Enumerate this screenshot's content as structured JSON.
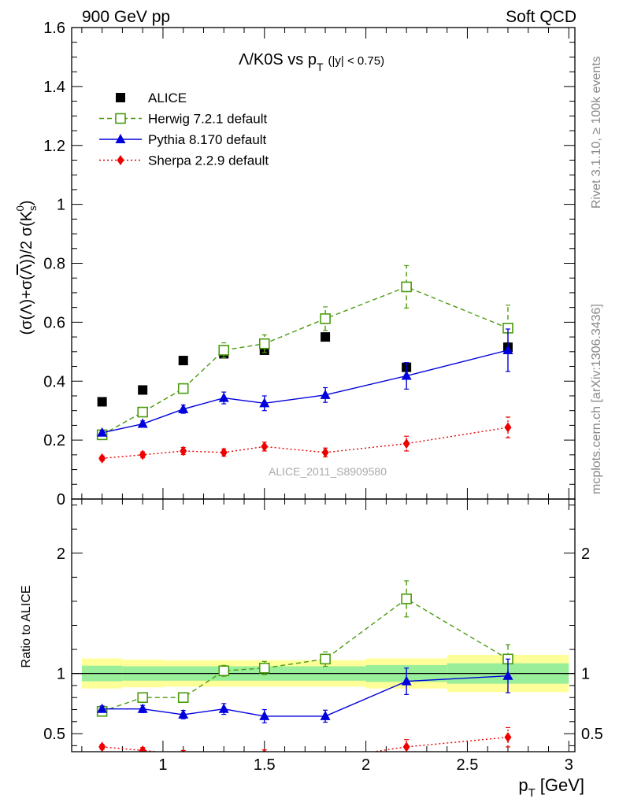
{
  "header": {
    "left": "900 GeV pp",
    "right": "Soft QCD"
  },
  "side_text": {
    "rivet": "Rivet 3.1.10, ≥ 100k events",
    "ref": "mcplots.cern.ch [arXiv:1306.3436]"
  },
  "chart_data": [
    {
      "type": "scatter",
      "title": "Λ/K0S vs p",
      "title_sub": "T",
      "title_cut": "(|y| < 0.75)",
      "watermark": "ALICE_2011_S8909580",
      "ylabel": "(σ(Λ)+σ(Λ))/2 σ(K⁰s)",
      "xlim": [
        0.55,
        3.03
      ],
      "ylim": [
        0,
        1.6
      ],
      "yticks": [
        0,
        0.2,
        0.4,
        0.6,
        0.8,
        1,
        1.2,
        1.4,
        1.6
      ],
      "ytick_labels": [
        "0",
        "0.2",
        "0.4",
        "0.6",
        "0.8",
        "1",
        "1.2",
        "1.4",
        "1.6"
      ],
      "legend_position": "top-left",
      "series": [
        {
          "name": "ALICE",
          "color": "#000000",
          "marker": "square-filled",
          "line": "none",
          "x": [
            0.7,
            0.9,
            1.1,
            1.3,
            1.5,
            1.8,
            2.2,
            2.7
          ],
          "y": [
            0.33,
            0.37,
            0.47,
            0.493,
            0.505,
            0.55,
            0.447,
            0.515
          ],
          "err": [
            0.008,
            0.008,
            0.008,
            0.01,
            0.01,
            0.01,
            0.012,
            0.015
          ]
        },
        {
          "name": "Herwig 7.2.1 default",
          "color": "#4a9b0f",
          "marker": "square-open",
          "line": "dashed",
          "x": [
            0.7,
            0.9,
            1.1,
            1.3,
            1.5,
            1.8,
            2.2,
            2.7
          ],
          "y": [
            0.218,
            0.295,
            0.375,
            0.505,
            0.527,
            0.612,
            0.72,
            0.58
          ],
          "err": [
            0.01,
            0.01,
            0.012,
            0.025,
            0.03,
            0.04,
            0.072,
            0.078
          ]
        },
        {
          "name": "Pythia 8.170 default",
          "color": "#0000dd",
          "marker": "triangle",
          "line": "solid",
          "x": [
            0.7,
            0.9,
            1.1,
            1.3,
            1.5,
            1.8,
            2.2,
            2.7
          ],
          "y": [
            0.225,
            0.255,
            0.305,
            0.343,
            0.325,
            0.353,
            0.418,
            0.505
          ],
          "err": [
            0.008,
            0.01,
            0.014,
            0.02,
            0.025,
            0.025,
            0.045,
            0.072
          ]
        },
        {
          "name": "Sherpa 2.2.9 default",
          "color": "#ee0000",
          "marker": "diamond",
          "line": "dotted",
          "x": [
            0.7,
            0.9,
            1.1,
            1.3,
            1.5,
            1.8,
            2.2,
            2.7
          ],
          "y": [
            0.138,
            0.15,
            0.163,
            0.158,
            0.178,
            0.158,
            0.188,
            0.243
          ],
          "err": [
            0.008,
            0.01,
            0.012,
            0.012,
            0.015,
            0.015,
            0.025,
            0.035
          ]
        }
      ]
    },
    {
      "type": "scatter",
      "ylabel": "Ratio to ALICE",
      "xlabel": "p",
      "xlabel_sub": "T",
      "xlabel_unit": "[GeV]",
      "xlim": [
        0.55,
        3.03
      ],
      "ylim": [
        0.35,
        2.45
      ],
      "xticks": [
        1,
        1.5,
        2,
        2.5,
        3
      ],
      "xtick_labels": [
        "1",
        "1.5",
        "2",
        "2.5",
        "3"
      ],
      "yticks": [
        0.5,
        1,
        2
      ],
      "ytick_labels": [
        "0.5",
        "1",
        "2"
      ],
      "reference_line": 1,
      "bands": {
        "edges": [
          0.6,
          0.8,
          1.0,
          1.2,
          1.4,
          1.6,
          2.0,
          2.4,
          3.0
        ],
        "inner": [
          0.065,
          0.06,
          0.06,
          0.06,
          0.06,
          0.06,
          0.07,
          0.085
        ],
        "outer": [
          0.125,
          0.115,
          0.11,
          0.11,
          0.11,
          0.11,
          0.125,
          0.155
        ],
        "inner_color": "#99ee99",
        "outer_color": "#ffff99"
      },
      "series": [
        {
          "name": "Herwig 7.2.1 default",
          "color": "#4a9b0f",
          "marker": "square-open",
          "line": "dashed",
          "x": [
            0.7,
            0.9,
            1.1,
            1.3,
            1.5,
            1.8,
            2.2,
            2.7
          ],
          "y": [
            0.685,
            0.8,
            0.8,
            1.022,
            1.045,
            1.12,
            1.62,
            1.12
          ],
          "err": [
            0.02,
            0.02,
            0.025,
            0.045,
            0.055,
            0.06,
            0.15,
            0.12
          ]
        },
        {
          "name": "Pythia 8.170 default",
          "color": "#0000dd",
          "marker": "triangle",
          "line": "solid",
          "x": [
            0.7,
            0.9,
            1.1,
            1.3,
            1.5,
            1.8,
            2.2,
            2.7
          ],
          "y": [
            0.705,
            0.705,
            0.658,
            0.705,
            0.645,
            0.645,
            0.935,
            0.98
          ],
          "err": [
            0.025,
            0.03,
            0.035,
            0.045,
            0.055,
            0.05,
            0.11,
            0.14
          ]
        },
        {
          "name": "Sherpa 2.2.9 default",
          "color": "#ee0000",
          "marker": "diamond",
          "line": "dotted",
          "x": [
            0.7,
            0.9,
            1.1,
            1.3,
            1.5,
            1.8,
            2.2,
            2.7
          ],
          "y": [
            0.39,
            0.36,
            0.33,
            0.3,
            0.33,
            0.29,
            0.39,
            0.47
          ],
          "err": [
            0.02,
            0.025,
            0.03,
            0.03,
            0.035,
            0.03,
            0.06,
            0.08
          ]
        }
      ]
    }
  ]
}
